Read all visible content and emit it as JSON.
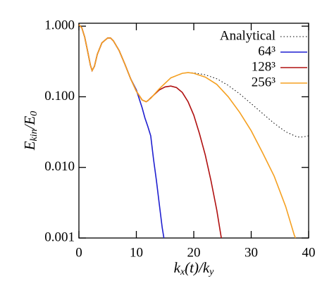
{
  "chart_data": {
    "type": "line",
    "x_label": [
      {
        "text": "k"
      },
      {
        "text": "x",
        "sub": true
      },
      {
        "text": "(t)/k"
      },
      {
        "text": "y",
        "sub": true
      }
    ],
    "y_label": [
      {
        "text": "E"
      },
      {
        "text": "kin",
        "sub": true
      },
      {
        "text": "/E"
      },
      {
        "text": "0",
        "sub": true
      }
    ],
    "xlim": [
      0,
      40
    ],
    "xticks": [
      0,
      10,
      20,
      30,
      40
    ],
    "ylim": [
      0.001,
      1.1
    ],
    "log_y": true,
    "yticks": [
      {
        "value": 0.001,
        "label": "0.001"
      },
      {
        "value": 0.01,
        "label": "0.010"
      },
      {
        "value": 0.1,
        "label": "0.100"
      },
      {
        "value": 1,
        "label": "1.000"
      }
    ],
    "legend": "upper right",
    "series": [
      {
        "name": "Analytical",
        "color": "#000000",
        "dash": "dotted",
        "x": [
          0,
          0.5,
          1,
          1.5,
          2,
          2.3,
          2.7,
          3.2,
          4,
          5,
          5.5,
          6,
          7,
          8,
          9,
          10,
          11,
          11.7,
          12.5,
          14,
          16,
          18,
          19,
          20,
          22,
          24,
          26,
          28,
          30,
          32,
          34,
          36,
          38,
          39,
          40
        ],
        "values": [
          1.05,
          0.95,
          0.7,
          0.45,
          0.28,
          0.235,
          0.27,
          0.4,
          0.58,
          0.68,
          0.68,
          0.62,
          0.45,
          0.29,
          0.18,
          0.12,
          0.09,
          0.085,
          0.095,
          0.13,
          0.185,
          0.215,
          0.22,
          0.218,
          0.205,
          0.18,
          0.145,
          0.11,
          0.08,
          0.058,
          0.042,
          0.032,
          0.027,
          0.027,
          0.028
        ]
      },
      {
        "name": "64³",
        "color": "#1f1fd0",
        "x": [
          0,
          0.5,
          1,
          1.5,
          2,
          2.3,
          2.7,
          3.2,
          4,
          5,
          5.5,
          6,
          7,
          8,
          9,
          10,
          11,
          11.5,
          12,
          12.5,
          13,
          13.5,
          14,
          14.5,
          14.8
        ],
        "values": [
          1.05,
          0.95,
          0.7,
          0.45,
          0.28,
          0.235,
          0.27,
          0.4,
          0.58,
          0.68,
          0.68,
          0.62,
          0.45,
          0.29,
          0.18,
          0.125,
          0.07,
          0.05,
          0.038,
          0.028,
          0.013,
          0.0065,
          0.003,
          0.0014,
          0.001
        ]
      },
      {
        "name": "128³",
        "color": "#b01010",
        "x": [
          0,
          0.5,
          1,
          1.5,
          2,
          2.3,
          2.7,
          3.2,
          4,
          5,
          5.5,
          6,
          7,
          8,
          9,
          10,
          11,
          11.7,
          12,
          13,
          14,
          15,
          16,
          17,
          18,
          19,
          20,
          21,
          22,
          23,
          24,
          24.8
        ],
        "values": [
          1.05,
          0.95,
          0.7,
          0.45,
          0.28,
          0.235,
          0.27,
          0.4,
          0.58,
          0.68,
          0.68,
          0.62,
          0.45,
          0.29,
          0.18,
          0.12,
          0.09,
          0.085,
          0.088,
          0.105,
          0.125,
          0.138,
          0.142,
          0.135,
          0.115,
          0.085,
          0.055,
          0.03,
          0.015,
          0.0065,
          0.0025,
          0.001
        ]
      },
      {
        "name": "256³",
        "color": "#f5a020",
        "x": [
          0,
          0.5,
          1,
          1.5,
          2,
          2.3,
          2.7,
          3.2,
          4,
          5,
          5.5,
          6,
          7,
          8,
          9,
          10,
          11,
          11.7,
          12.5,
          14,
          16,
          18,
          19,
          20,
          22,
          24,
          26,
          28,
          30,
          32,
          34,
          36,
          37.5,
          37.7
        ],
        "values": [
          1.05,
          0.95,
          0.7,
          0.45,
          0.28,
          0.235,
          0.27,
          0.4,
          0.58,
          0.68,
          0.68,
          0.62,
          0.45,
          0.29,
          0.18,
          0.12,
          0.09,
          0.085,
          0.095,
          0.13,
          0.185,
          0.215,
          0.22,
          0.215,
          0.19,
          0.15,
          0.1,
          0.06,
          0.033,
          0.016,
          0.0075,
          0.0028,
          0.0011,
          0.001
        ]
      }
    ]
  }
}
